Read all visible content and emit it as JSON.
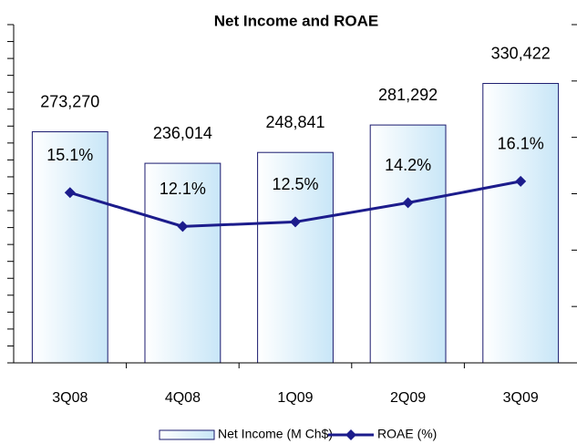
{
  "chart_data": {
    "type": "bar",
    "title": "Net Income and ROAE",
    "categories": [
      "3Q08",
      "4Q08",
      "1Q09",
      "2Q09",
      "3Q09"
    ],
    "series": [
      {
        "name": "Net Income (M Ch$)",
        "type": "bar",
        "color": "#1a1a6e",
        "values": [
          273270,
          236014,
          248841,
          281292,
          330422
        ],
        "value_labels": [
          "273,270",
          "236,014",
          "248,841",
          "281,292",
          "330,422"
        ]
      },
      {
        "name": "ROAE (%)",
        "type": "line",
        "axis": "y2",
        "color": "#1c1c8c",
        "values": [
          15.1,
          12.1,
          12.5,
          14.2,
          16.1
        ],
        "value_labels": [
          "15.1%",
          "12.1%",
          "12.5%",
          "14.2%",
          "16.1%"
        ]
      }
    ],
    "ylim": [
      0,
      400000
    ],
    "yticks": [
      0,
      20000,
      40000,
      60000,
      80000,
      100000,
      120000,
      140000,
      160000,
      180000,
      200000,
      220000,
      240000,
      260000,
      280000,
      300000,
      320000,
      340000,
      360000,
      380000,
      400000
    ],
    "y2lim": [
      0,
      30
    ],
    "y2ticks": [
      0,
      5,
      10,
      15,
      20,
      25,
      30
    ],
    "legend": "bottom"
  }
}
